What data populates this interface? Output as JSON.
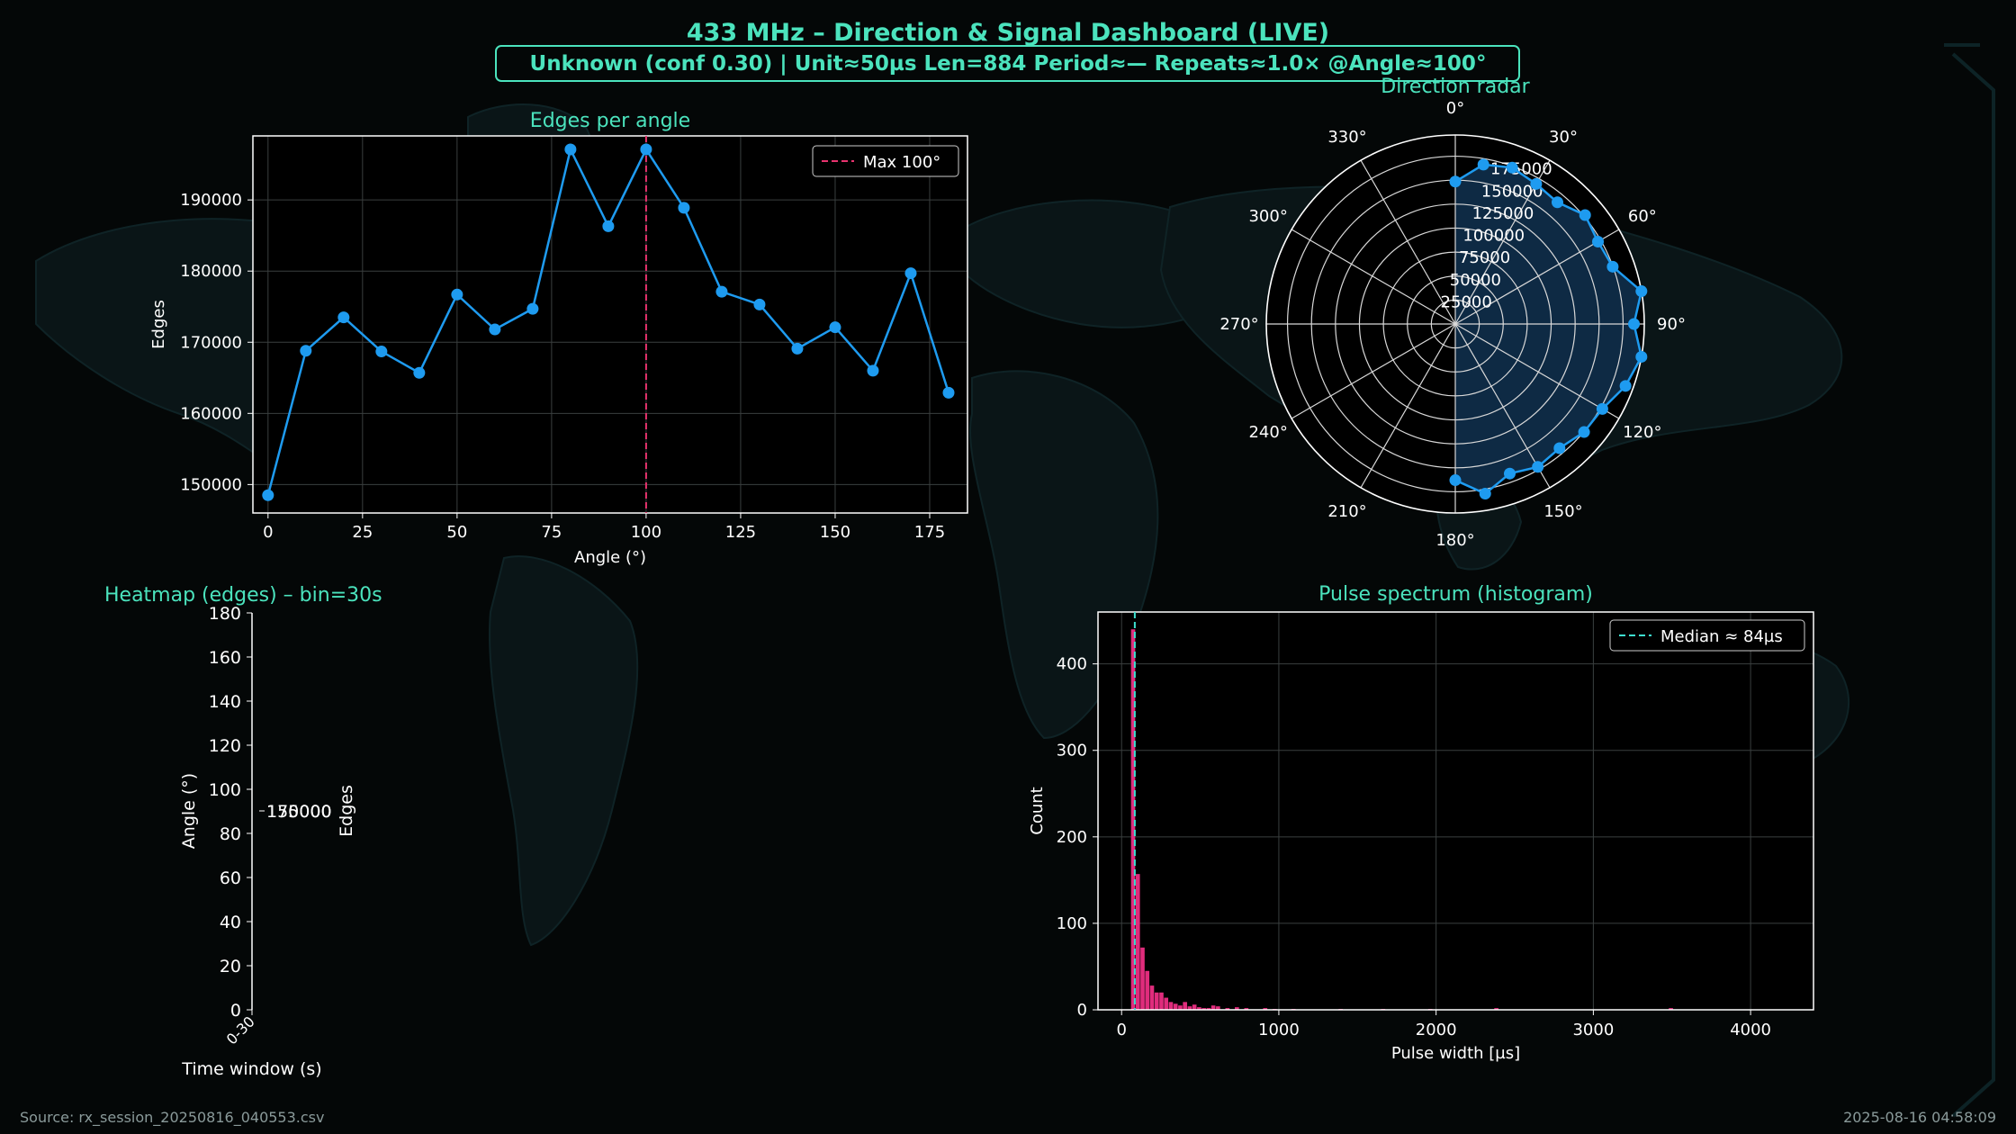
{
  "title": "433 MHz – Direction & Signal Dashboard (LIVE)",
  "status_line": "Unknown  (conf 0.30) | Unit≈50µs  Len=884  Period≈—  Repeats≈1.0×  @Angle≈100°",
  "footer": {
    "source": "Source: rx_session_20250816_040553.csv",
    "timestamp": "2025-08-16 04:58:09"
  },
  "colors": {
    "background": "#040707",
    "accent": "#4be3bd",
    "line": "#1e9bf0",
    "max_marker": "#e8336e",
    "histogram": "#e02c7c",
    "median_marker": "#3ee0d0",
    "polar_fill": "#0e2a44"
  },
  "chart_data": [
    {
      "type": "line",
      "title": "Edges per angle",
      "xlabel": "Angle (°)",
      "ylabel": "Edges",
      "x": [
        0,
        10,
        20,
        30,
        40,
        50,
        60,
        70,
        80,
        90,
        100,
        110,
        120,
        130,
        140,
        150,
        160,
        170,
        180
      ],
      "series": [
        {
          "values": [
            148500,
            168800,
            173500,
            168700,
            165700,
            176700,
            171800,
            174700,
            197100,
            186300,
            197100,
            188900,
            177100,
            175300,
            169100,
            172100,
            166000,
            179700,
            162900
          ]
        }
      ],
      "xticks": [
        "0",
        "25",
        "50",
        "75",
        "100",
        "125",
        "150",
        "175"
      ],
      "yticks": [
        "150000",
        "160000",
        "170000",
        "180000",
        "190000"
      ],
      "xlim": [
        -4,
        185
      ],
      "ylim": [
        146000,
        199000
      ],
      "grid": true,
      "annotation": {
        "label": "Max 100°",
        "x": 100
      },
      "legend": "upper-right"
    },
    {
      "type": "line",
      "subtype": "polar",
      "title": "Direction radar",
      "theta": [
        0,
        10,
        20,
        30,
        40,
        50,
        60,
        70,
        80,
        90,
        100,
        110,
        120,
        130,
        140,
        150,
        160,
        170,
        180
      ],
      "values": [
        148500,
        168800,
        173500,
        168700,
        165700,
        176700,
        171800,
        174700,
        197100,
        186300,
        197100,
        188900,
        177100,
        175300,
        169100,
        172100,
        166000,
        179700,
        162900
      ],
      "angle_labels": [
        "0°",
        "30°",
        "60°",
        "90°",
        "120°",
        "150°",
        "180°",
        "210°",
        "240°",
        "270°",
        "300°",
        "330°"
      ],
      "radial_labels": [
        "25000",
        "50000",
        "75000",
        "100000",
        "125000",
        "150000",
        "175000"
      ],
      "rmax": 197100,
      "grid": true
    },
    {
      "type": "heatmap",
      "title": "Heatmap (edges) – bin=30s",
      "xlabel": "Time window (s)",
      "ylabel": "Angle (°)",
      "xticks": [
        "0-30"
      ],
      "yticks": [
        "0",
        "20",
        "40",
        "60",
        "80",
        "100",
        "120",
        "140",
        "160",
        "180"
      ],
      "ylim": [
        0,
        180
      ],
      "colorbar": {
        "label": "Edges",
        "ticks": [
          "150000",
          "175000"
        ]
      }
    },
    {
      "type": "bar",
      "subtype": "histogram",
      "title": "Pulse spectrum (histogram)",
      "xlabel": "Pulse width [µs]",
      "ylabel": "Count",
      "bin_width_us": 30,
      "bins": [
        {
          "x": 60,
          "count": 440
        },
        {
          "x": 90,
          "count": 157
        },
        {
          "x": 120,
          "count": 72
        },
        {
          "x": 150,
          "count": 45
        },
        {
          "x": 180,
          "count": 28
        },
        {
          "x": 210,
          "count": 20
        },
        {
          "x": 240,
          "count": 20
        },
        {
          "x": 270,
          "count": 14
        },
        {
          "x": 300,
          "count": 9
        },
        {
          "x": 330,
          "count": 7
        },
        {
          "x": 360,
          "count": 5
        },
        {
          "x": 390,
          "count": 9
        },
        {
          "x": 420,
          "count": 4
        },
        {
          "x": 450,
          "count": 6
        },
        {
          "x": 480,
          "count": 3
        },
        {
          "x": 510,
          "count": 2
        },
        {
          "x": 540,
          "count": 2
        },
        {
          "x": 570,
          "count": 5
        },
        {
          "x": 600,
          "count": 4
        },
        {
          "x": 660,
          "count": 2
        },
        {
          "x": 720,
          "count": 3
        },
        {
          "x": 780,
          "count": 2
        },
        {
          "x": 900,
          "count": 2
        },
        {
          "x": 960,
          "count": 1
        },
        {
          "x": 1080,
          "count": 1
        },
        {
          "x": 1380,
          "count": 1
        },
        {
          "x": 1650,
          "count": 1
        },
        {
          "x": 1950,
          "count": 1
        },
        {
          "x": 2370,
          "count": 2
        },
        {
          "x": 3480,
          "count": 2
        }
      ],
      "xticks": [
        "0",
        "1000",
        "2000",
        "3000",
        "4000"
      ],
      "yticks": [
        "0",
        "100",
        "200",
        "300",
        "400"
      ],
      "xlim": [
        -150,
        4400
      ],
      "ylim": [
        0,
        460
      ],
      "grid": true,
      "annotation": {
        "label": "Median ≈ 84µs",
        "x": 84
      },
      "legend": "upper-right"
    }
  ]
}
